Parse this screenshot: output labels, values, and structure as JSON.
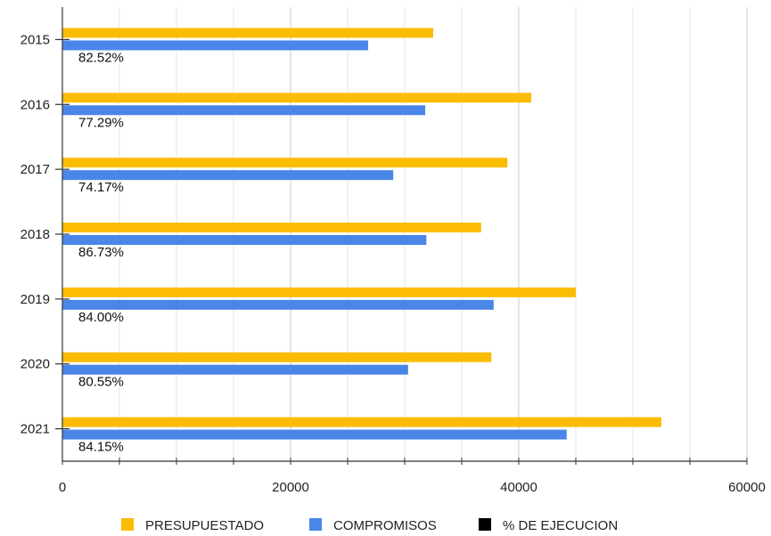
{
  "chart_data": {
    "type": "bar",
    "orientation": "horizontal",
    "categories": [
      "2015",
      "2016",
      "2017",
      "2018",
      "2019",
      "2020",
      "2021"
    ],
    "series": [
      {
        "name": "PRESUPUESTADO",
        "color": "#fbbc04",
        "values": [
          32500,
          41100,
          39000,
          36700,
          45000,
          37600,
          52500
        ]
      },
      {
        "name": "COMPROMISOS",
        "color": "#4a86e8",
        "values": [
          26800,
          31800,
          29000,
          31900,
          37800,
          30300,
          44200
        ]
      },
      {
        "name": "% DE EJECUCION",
        "color": "#000000",
        "values": [
          82.52,
          77.29,
          74.17,
          86.73,
          84.0,
          80.55,
          84.15
        ]
      }
    ],
    "percent_labels": [
      "82.52%",
      "77.29%",
      "74.17%",
      "86.73%",
      "84.00%",
      "80.55%",
      "84.15%"
    ],
    "x_ticks": [
      "0",
      "20000",
      "40000",
      "60000"
    ],
    "xlim": [
      0,
      60000
    ],
    "grid": true,
    "legend_position": "bottom"
  }
}
